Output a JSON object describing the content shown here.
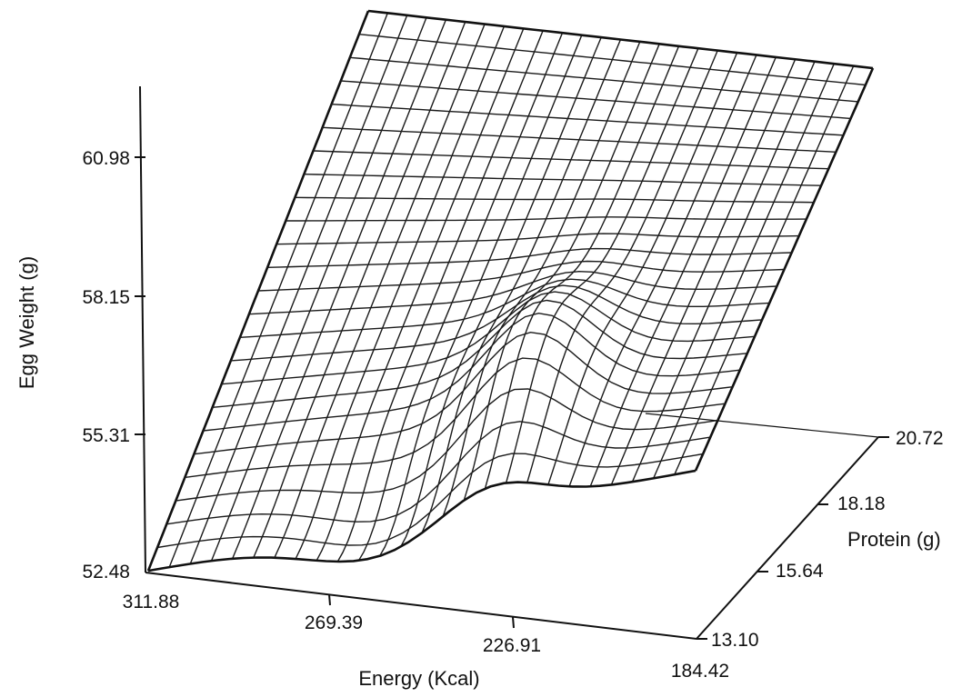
{
  "chart_data": {
    "type": "surface",
    "xlabel": "Energy (Kcal)",
    "ylabel": "Protein (g)",
    "zlabel": "Egg Weight (g)",
    "x_ticks": [
      "311.88",
      "269.39",
      "226.91",
      "184.42"
    ],
    "y_ticks": [
      "13.10",
      "15.64",
      "18.18",
      "20.72"
    ],
    "z_ticks": [
      "52.48",
      "55.31",
      "58.15",
      "60.98"
    ],
    "x_range": [
      311.88,
      184.42
    ],
    "y_range": [
      13.1,
      20.72
    ],
    "z_range": [
      52.48,
      60.98
    ],
    "grid": false,
    "surface_corners": [
      {
        "energy": 311.88,
        "protein": 13.1,
        "egg_weight": 52.48
      },
      {
        "energy": 184.42,
        "protein": 13.1,
        "egg_weight": 54.4
      },
      {
        "energy": 311.88,
        "protein": 20.72,
        "egg_weight": 63.0
      },
      {
        "energy": 184.42,
        "protein": 20.72,
        "egg_weight": 61.6
      }
    ]
  }
}
